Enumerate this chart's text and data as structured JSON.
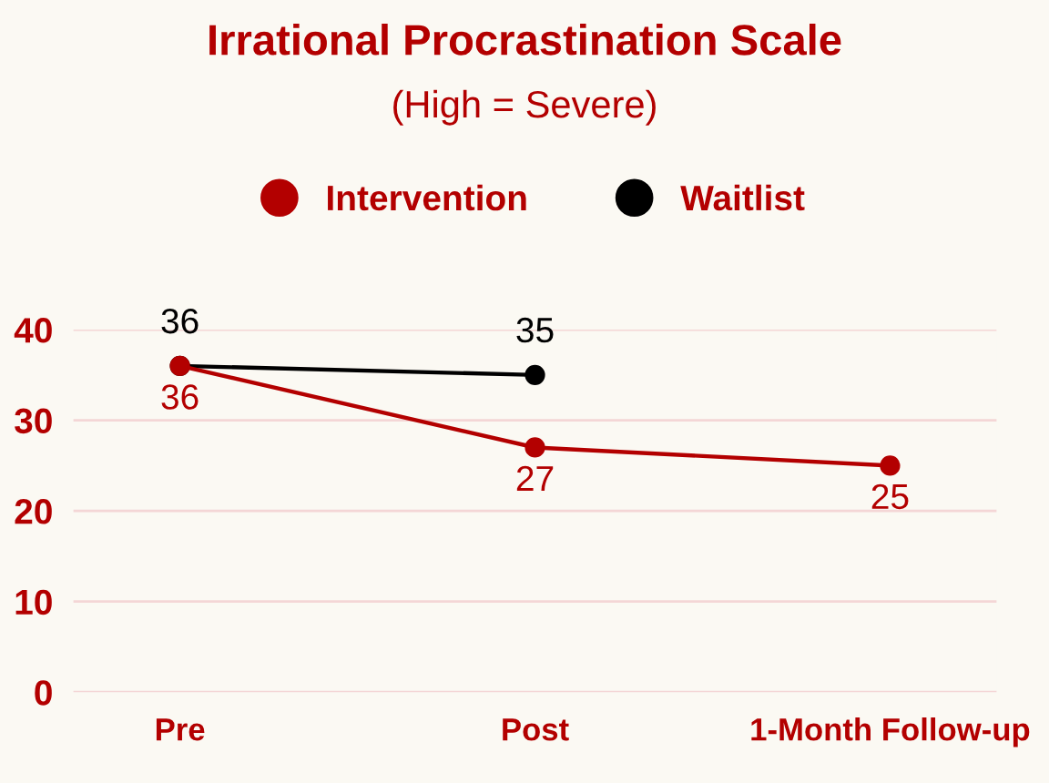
{
  "chart_data": {
    "type": "line",
    "title": "Irrational Procrastination Scale",
    "subtitle": "(High = Severe)",
    "categories": [
      "Pre",
      "Post",
      "1-Month Follow-up"
    ],
    "series": [
      {
        "name": "Intervention",
        "color": "#b30000",
        "values": [
          36,
          27,
          25
        ]
      },
      {
        "name": "Waitlist",
        "color": "#000000",
        "values": [
          36,
          35,
          null
        ]
      }
    ],
    "ylim": [
      0,
      40
    ],
    "yticks": [
      0,
      10,
      20,
      30,
      40
    ],
    "grid": "y",
    "legend": "top",
    "marker": "circle",
    "line_style": "solid",
    "data_labels": true
  }
}
